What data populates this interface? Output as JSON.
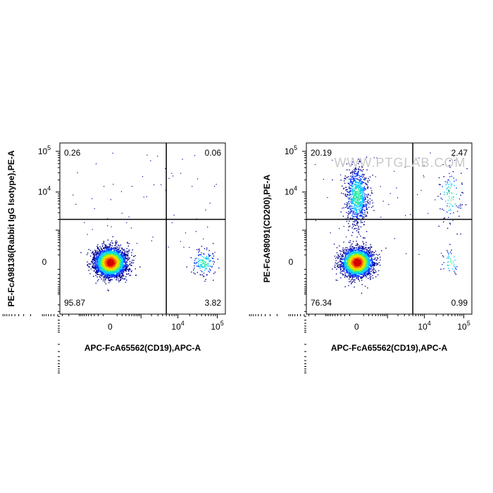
{
  "watermark": "WWW.PTGLAB.COM",
  "colors": {
    "density_scale": [
      "#00008f",
      "#0034ff",
      "#00c8ff",
      "#2ee8a0",
      "#b8f000",
      "#ffd000",
      "#ff5a00",
      "#d40000"
    ],
    "gate_lines": "#000000",
    "frame": "#000000"
  },
  "chart_data": [
    {
      "type": "scatter",
      "plot_style": "flow cytometry density dot plot",
      "xlabel": "APC-FcA65562(CD19),APC-A",
      "ylabel": "PE-FcA98136(Rabbit IgG Isotype),PE-A",
      "x_scale": "biexponential",
      "y_scale": "biexponential",
      "x_ticks": [
        {
          "base": "0",
          "exp": ""
        },
        {
          "base": "10",
          "exp": "4"
        },
        {
          "base": "10",
          "exp": "5"
        }
      ],
      "y_ticks": [
        {
          "base": "0",
          "exp": ""
        },
        {
          "base": "10",
          "exp": "4"
        },
        {
          "base": "10",
          "exp": "5"
        }
      ],
      "quadrants": {
        "upper_left": "0.26",
        "upper_right": "0.06",
        "lower_left": "95.87",
        "lower_right": "3.82"
      },
      "populations": [
        {
          "label": "CD19- population",
          "x_center": 0,
          "y_center": 0,
          "share": 0.958
        },
        {
          "label": "CD19+ population",
          "x_center": 45000,
          "y_center": 0,
          "share": 0.038
        }
      ]
    },
    {
      "type": "scatter",
      "plot_style": "flow cytometry density dot plot",
      "xlabel": "APC-FcA65562(CD19),APC-A",
      "ylabel": "PE-FcA98091(CD200),PE-A",
      "x_scale": "biexponential",
      "y_scale": "biexponential",
      "x_ticks": [
        {
          "base": "0",
          "exp": ""
        },
        {
          "base": "10",
          "exp": "4"
        },
        {
          "base": "10",
          "exp": "5"
        }
      ],
      "y_ticks": [
        {
          "base": "0",
          "exp": ""
        },
        {
          "base": "10",
          "exp": "4"
        },
        {
          "base": "10",
          "exp": "5"
        }
      ],
      "quadrants": {
        "upper_left": "20.19",
        "upper_right": "2.47",
        "lower_left": "76.34",
        "lower_right": "0.99"
      },
      "populations": [
        {
          "label": "CD19- CD200- population",
          "x_center": 0,
          "y_center": 0,
          "share": 0.763
        },
        {
          "label": "CD19- CD200+ population",
          "x_center": 0,
          "y_center": 8000,
          "share": 0.202
        },
        {
          "label": "CD19+ CD200+ population",
          "x_center": 45000,
          "y_center": 8000,
          "share": 0.025
        },
        {
          "label": "CD19+ CD200- population",
          "x_center": 45000,
          "y_center": 0,
          "share": 0.01
        }
      ]
    }
  ]
}
